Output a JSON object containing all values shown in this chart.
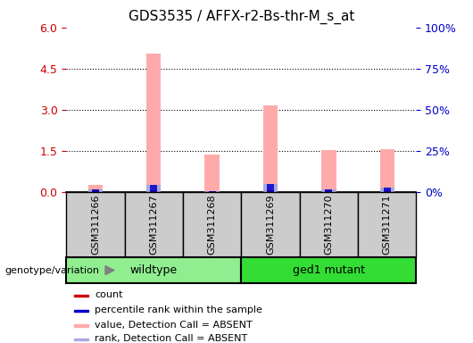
{
  "title": "GDS3535 / AFFX-r2-Bs-thr-M_s_at",
  "samples": [
    "GSM311266",
    "GSM311267",
    "GSM311268",
    "GSM311269",
    "GSM311270",
    "GSM311271"
  ],
  "groups": [
    {
      "label": "wildtype",
      "indices": [
        0,
        1,
        2
      ],
      "color": "#90ee90"
    },
    {
      "label": "ged1 mutant",
      "indices": [
        3,
        4,
        5
      ],
      "color": "#33dd33"
    }
  ],
  "absent_value": [
    0.25,
    5.05,
    1.38,
    3.15,
    1.52,
    1.58
  ],
  "absent_rank": [
    0.1,
    0.25,
    0.05,
    0.28,
    0.1,
    0.17
  ],
  "count_values": [
    0.07,
    0.07,
    0.05,
    0.07,
    0.06,
    0.06
  ],
  "rank_values": [
    0.1,
    0.25,
    0.05,
    0.28,
    0.1,
    0.17
  ],
  "ylim_left": [
    0,
    6
  ],
  "ylim_right": [
    0,
    100
  ],
  "yticks_left": [
    0,
    1.5,
    3,
    4.5,
    6
  ],
  "yticks_right": [
    0,
    25,
    50,
    75,
    100
  ],
  "bar_width": 0.25,
  "color_count": "#cc0000",
  "color_rank": "#0000cc",
  "color_absent_value": "#ffaaaa",
  "color_absent_rank": "#aaaadd",
  "axis_left_color": "#cc0000",
  "axis_right_color": "#0000cc",
  "group_label_prefix": "genotype/variation",
  "legend_items": [
    {
      "label": "count",
      "color": "#cc0000"
    },
    {
      "label": "percentile rank within the sample",
      "color": "#0000cc"
    },
    {
      "label": "value, Detection Call = ABSENT",
      "color": "#ffaaaa"
    },
    {
      "label": "rank, Detection Call = ABSENT",
      "color": "#aaaadd"
    }
  ],
  "figsize": [
    5.3,
    3.84
  ],
  "dpi": 100
}
